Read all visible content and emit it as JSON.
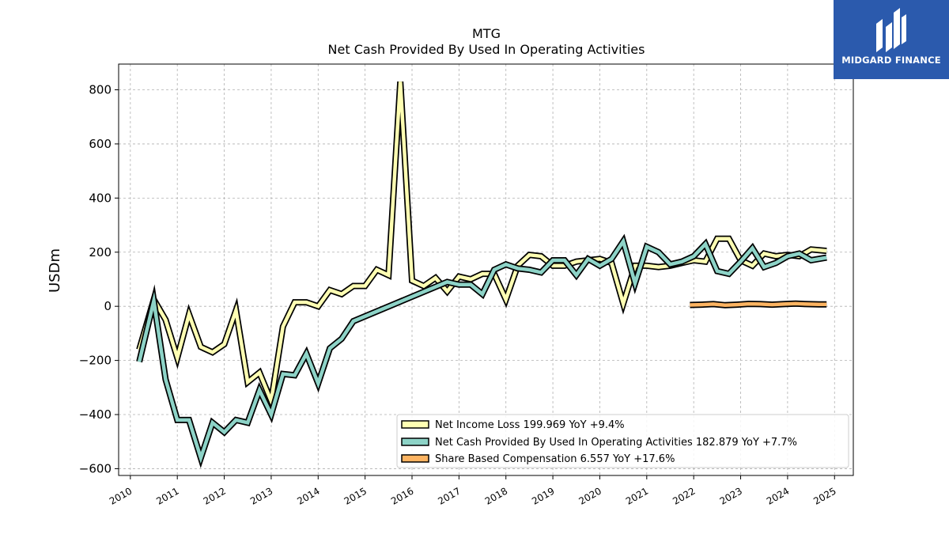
{
  "brand": {
    "name": "MIDGARD FINANCE",
    "color": "#2b5aad"
  },
  "chart_data": {
    "type": "line",
    "title": "MTG",
    "subtitle": "Net Cash Provided By Used In Operating Activities",
    "ylabel": "USDm",
    "xlabel": "",
    "xlim": [
      2009.75,
      2025.4
    ],
    "ylim": [
      -625,
      895
    ],
    "xticks": [
      "2010",
      "2011",
      "2012",
      "2013",
      "2014",
      "2015",
      "2016",
      "2017",
      "2018",
      "2019",
      "2020",
      "2021",
      "2022",
      "2023",
      "2024",
      "2025"
    ],
    "yticks": [
      -600,
      -400,
      -200,
      0,
      200,
      400,
      600,
      800
    ],
    "ytick_labels": [
      "−600",
      "−400",
      "−200",
      "0",
      "200",
      "400",
      "600",
      "800"
    ],
    "grid": true,
    "legend_position": "lower-right",
    "series": [
      {
        "name": "Net Income Loss",
        "legend": "Net Income Loss  199.969 YoY +9.4%",
        "color": "#ffffb3",
        "x": [
          2010.19,
          2010.5,
          2010.75,
          2011.0,
          2011.25,
          2011.5,
          2011.75,
          2012.0,
          2012.25,
          2012.5,
          2012.75,
          2013.0,
          2013.25,
          2013.5,
          2013.75,
          2014.0,
          2014.25,
          2014.5,
          2014.75,
          2015.0,
          2015.25,
          2015.5,
          2015.75,
          2016.0,
          2016.25,
          2016.5,
          2016.75,
          2017.0,
          2017.25,
          2017.5,
          2017.75,
          2018.0,
          2018.25,
          2018.5,
          2018.75,
          2019.0,
          2019.25,
          2019.5,
          2019.75,
          2020.0,
          2020.25,
          2020.5,
          2020.75,
          2021.0,
          2021.25,
          2021.5,
          2021.75,
          2022.0,
          2022.25,
          2022.5,
          2022.75,
          2023.0,
          2023.25,
          2023.5,
          2023.75,
          2024.0,
          2024.25,
          2024.5,
          2024.83
        ],
        "y": [
          -160,
          25,
          -50,
          -190,
          -30,
          -150,
          -170,
          -140,
          -15,
          -280,
          -245,
          -350,
          -75,
          15,
          15,
          0,
          60,
          45,
          75,
          75,
          135,
          115,
          830,
          95,
          75,
          105,
          55,
          110,
          100,
          120,
          120,
          25,
          150,
          190,
          185,
          150,
          150,
          165,
          170,
          175,
          160,
          10,
          150,
          150,
          145,
          150,
          160,
          170,
          165,
          250,
          250,
          170,
          150,
          195,
          185,
          190,
          185,
          210,
          205
        ]
      },
      {
        "name": "Net Cash Provided By Used In Operating Activities",
        "legend": "Net Cash Provided By Used In Operating Activities  182.879 YoY +7.7%",
        "color": "#8dd3c7",
        "x": [
          2010.19,
          2010.5,
          2010.75,
          2011.0,
          2011.25,
          2011.5,
          2011.75,
          2012.0,
          2012.25,
          2012.5,
          2012.75,
          2013.0,
          2013.25,
          2013.5,
          2013.75,
          2014.0,
          2014.25,
          2014.5,
          2014.75,
          2016.75,
          2017.0,
          2017.25,
          2017.5,
          2017.75,
          2018.0,
          2018.25,
          2018.5,
          2018.75,
          2019.0,
          2019.25,
          2019.5,
          2019.75,
          2020.0,
          2020.25,
          2020.5,
          2020.75,
          2021.0,
          2021.25,
          2021.5,
          2021.75,
          2022.0,
          2022.25,
          2022.5,
          2022.75,
          2023.0,
          2023.25,
          2023.5,
          2023.75,
          2024.0,
          2024.25,
          2024.5,
          2024.83
        ],
        "y": [
          -205,
          20,
          -270,
          -420,
          -420,
          -560,
          -430,
          -465,
          -420,
          -430,
          -310,
          -400,
          -250,
          -255,
          -175,
          -285,
          -155,
          -120,
          -55,
          90,
          80,
          80,
          45,
          135,
          155,
          140,
          135,
          125,
          170,
          170,
          115,
          175,
          150,
          175,
          240,
          85,
          220,
          200,
          155,
          165,
          185,
          230,
          130,
          120,
          165,
          215,
          145,
          160,
          185,
          195,
          170,
          180
        ]
      },
      {
        "name": "Share Based Compensation",
        "legend": "Share Based Compensation  6.557 YoY +17.6%",
        "color": "#fdb462",
        "x": [
          2021.92,
          2022.17,
          2022.42,
          2022.67,
          2022.92,
          2023.17,
          2023.42,
          2023.67,
          2023.92,
          2024.17,
          2024.42,
          2024.67,
          2024.83
        ],
        "y": [
          5,
          6,
          8,
          4,
          6,
          9,
          8,
          6,
          8,
          10,
          8,
          7,
          7
        ]
      }
    ]
  }
}
